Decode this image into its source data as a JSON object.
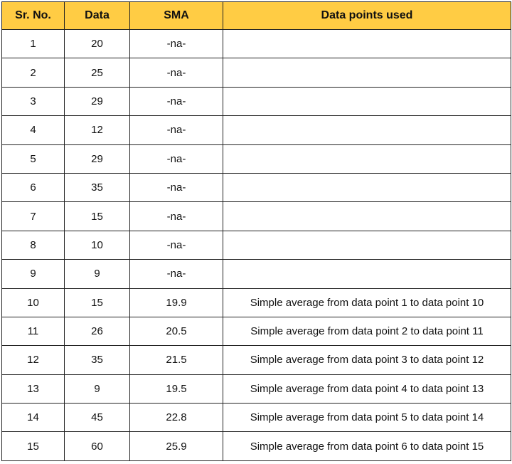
{
  "colors": {
    "header_bg": "#ffcc44",
    "border": "#222222"
  },
  "table": {
    "headers": [
      "Sr. No.",
      "Data",
      "SMA",
      "Data points used"
    ],
    "rows": [
      {
        "sr": "1",
        "data": "20",
        "sma": "-na-",
        "used": ""
      },
      {
        "sr": "2",
        "data": "25",
        "sma": "-na-",
        "used": ""
      },
      {
        "sr": "3",
        "data": "29",
        "sma": "-na-",
        "used": ""
      },
      {
        "sr": "4",
        "data": "12",
        "sma": "-na-",
        "used": ""
      },
      {
        "sr": "5",
        "data": "29",
        "sma": "-na-",
        "used": ""
      },
      {
        "sr": "6",
        "data": "35",
        "sma": "-na-",
        "used": ""
      },
      {
        "sr": "7",
        "data": "15",
        "sma": "-na-",
        "used": ""
      },
      {
        "sr": "8",
        "data": "10",
        "sma": "-na-",
        "used": ""
      },
      {
        "sr": "9",
        "data": "9",
        "sma": "-na-",
        "used": ""
      },
      {
        "sr": "10",
        "data": "15",
        "sma": "19.9",
        "used": "Simple average from data point 1 to data point 10"
      },
      {
        "sr": "11",
        "data": "26",
        "sma": "20.5",
        "used": "Simple average from data point 2 to data point 11"
      },
      {
        "sr": "12",
        "data": "35",
        "sma": "21.5",
        "used": "Simple average from data point 3 to data point 12"
      },
      {
        "sr": "13",
        "data": "9",
        "sma": "19.5",
        "used": "Simple average from data point 4 to data point 13"
      },
      {
        "sr": "14",
        "data": "45",
        "sma": "22.8",
        "used": "Simple average from data point 5 to data point 14"
      },
      {
        "sr": "15",
        "data": "60",
        "sma": "25.9",
        "used": "Simple average from data point 6 to data point 15"
      }
    ]
  }
}
